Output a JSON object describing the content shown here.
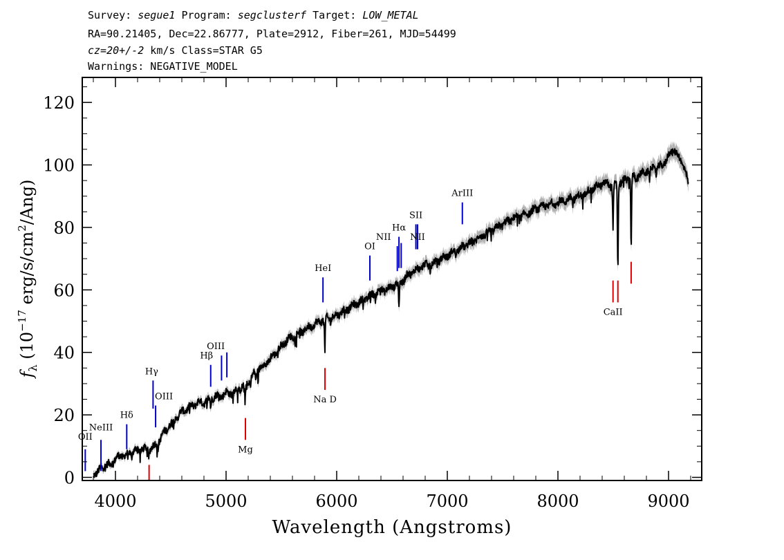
{
  "header": {
    "line1": {
      "survey_label": "Survey: ",
      "survey": "segue1",
      "program_label": " Program: ",
      "program": "segclusterf",
      "target_label": " Target: ",
      "target": "LOW_METAL"
    },
    "line2": "RA=90.21405, Dec=22.86777, Plate=2912, Fiber=261, MJD=54499",
    "line3": {
      "cz": "cz=20+/-2",
      "rest": " km/s Class=STAR G5"
    },
    "line4": "Warnings: NEGATIVE_MODEL"
  },
  "chart_data": {
    "type": "line",
    "xlabel": "Wavelength (Angstroms)",
    "ylabel_parts": {
      "f": "f",
      "sub": "λ",
      "pre": " (10",
      "exp1": "−17",
      "mid": " erg/s/cm",
      "exp2": "2",
      "post": "/Ang)"
    },
    "xlim": [
      3700,
      9300
    ],
    "ylim": [
      -1,
      128
    ],
    "xticks": [
      4000,
      5000,
      6000,
      7000,
      8000,
      9000
    ],
    "yticks": [
      0,
      20,
      40,
      60,
      80,
      100,
      120
    ],
    "xtick_labels": [
      "4000",
      "5000",
      "6000",
      "7000",
      "8000",
      "9000"
    ],
    "ytick_labels": [
      "0",
      "20",
      "40",
      "60",
      "80",
      "100",
      "120"
    ],
    "colors": {
      "spectrum": "#000000",
      "error": "#b0b0b0",
      "emission": "#0000cc",
      "absorption": "#dd0000"
    },
    "series": [
      {
        "x": [
          3800,
          3850,
          3900,
          3950,
          4000,
          4050,
          4100,
          4150,
          4200,
          4250,
          4300,
          4350,
          4400,
          4450,
          4500,
          4550,
          4600,
          4650,
          4700,
          4750,
          4800,
          4850,
          4900,
          4950,
          5000,
          5050,
          5100,
          5150,
          5200,
          5250,
          5300,
          5350,
          5400,
          5450,
          5500,
          5550,
          5600,
          5650,
          5700,
          5750,
          5800,
          5850,
          5900,
          5950,
          6000,
          6050,
          6100,
          6150,
          6200,
          6250,
          6300,
          6350,
          6400,
          6450,
          6500,
          6550,
          6600,
          6650,
          6700,
          6750,
          6800,
          6850,
          6900,
          6950,
          7000,
          7100,
          7200,
          7300,
          7400,
          7500,
          7600,
          7700,
          7800,
          7900,
          8000,
          8100,
          8200,
          8300,
          8400,
          8450,
          8500,
          8550,
          8600,
          8650,
          8700,
          8750,
          8800,
          8850,
          8900,
          8950,
          9000,
          9050,
          9100,
          9150,
          9180
        ],
        "y": [
          1,
          2,
          4,
          4,
          6,
          7,
          7,
          8,
          9,
          9,
          9,
          10,
          12,
          15,
          17,
          19,
          21,
          22,
          23,
          24,
          24,
          25,
          26,
          26,
          27,
          27,
          28,
          29,
          30,
          33,
          35,
          36,
          38,
          40,
          42,
          44,
          45,
          46,
          47,
          48,
          49,
          50,
          51,
          51,
          52,
          53,
          54,
          55,
          56,
          57,
          58,
          59,
          60,
          60,
          61,
          62,
          63,
          65,
          66,
          67,
          68,
          68,
          69,
          70,
          71,
          73,
          75,
          77,
          79,
          81,
          83,
          84,
          86,
          87,
          88,
          89,
          90,
          92,
          94,
          94,
          93,
          94,
          95,
          96,
          96,
          97,
          98,
          99,
          99,
          100,
          103,
          105,
          102,
          99,
          93
        ]
      }
    ],
    "absorption_dips": [
      {
        "x": 4300,
        "depth": 3
      },
      {
        "x": 4384,
        "depth": 2
      },
      {
        "x": 4861,
        "depth": 3
      },
      {
        "x": 5172,
        "depth": 6
      },
      {
        "x": 5270,
        "depth": 3
      },
      {
        "x": 5893,
        "depth": 11
      },
      {
        "x": 6563,
        "depth": 8
      },
      {
        "x": 8498,
        "depth": 13
      },
      {
        "x": 8542,
        "depth": 27
      },
      {
        "x": 8662,
        "depth": 22
      },
      {
        "x": 8830,
        "depth": 4
      }
    ],
    "line_markers": [
      {
        "label": "OII",
        "x": 3727,
        "y0": 2,
        "y1": 9,
        "kind": "emission",
        "label_dx": 0,
        "label_y": 12
      },
      {
        "label": "NeIII",
        "x": 3869,
        "y0": 2,
        "y1": 12,
        "kind": "emission",
        "label_dx": 0,
        "label_y": 15
      },
      {
        "label": "Hδ",
        "x": 4102,
        "y0": 9,
        "y1": 17,
        "kind": "emission",
        "label_dx": 0,
        "label_y": 19
      },
      {
        "label": "Hγ",
        "x": 4340,
        "y0": 22,
        "y1": 31,
        "kind": "emission",
        "label_dx": -2,
        "label_y": 33
      },
      {
        "label": "OIII",
        "x": 4363,
        "y0": 16,
        "y1": 23,
        "kind": "emission",
        "label_dx": 12,
        "label_y": 25
      },
      {
        "label": "Hβ",
        "x": 4861,
        "y0": 29,
        "y1": 36,
        "kind": "emission",
        "label_dx": -6,
        "label_y": 38
      },
      {
        "label": "OIII",
        "x": 4959,
        "y0": 31,
        "y1": 39,
        "kind": "emission",
        "label_dx": 0,
        "label_y": 0
      },
      {
        "label": "OIII",
        "x": 5007,
        "y0": 32,
        "y1": 40,
        "kind": "emission",
        "label_dx": -16,
        "label_y": 41
      },
      {
        "label": "HeI",
        "x": 5876,
        "y0": 56,
        "y1": 64,
        "kind": "emission",
        "label_dx": 0,
        "label_y": 66
      },
      {
        "label": "OI",
        "x": 6300,
        "y0": 63,
        "y1": 71,
        "kind": "emission",
        "label_dx": 0,
        "label_y": 73
      },
      {
        "label": "NII",
        "x": 6548,
        "y0": 66,
        "y1": 74,
        "kind": "emission",
        "label_dx": -20,
        "label_y": 76
      },
      {
        "label": "Hα",
        "x": 6563,
        "y0": 67,
        "y1": 77,
        "kind": "emission",
        "label_dx": 0,
        "label_y": 79
      },
      {
        "label": "NII",
        "x": 6583,
        "y0": 67,
        "y1": 75,
        "kind": "emission",
        "label_dx": 0,
        "label_y": 0
      },
      {
        "label": "SII",
        "x": 6716,
        "y0": 73,
        "y1": 81,
        "kind": "emission",
        "label_dx": 0,
        "label_y": 83
      },
      {
        "label": "NII",
        "x": 6731,
        "y0": 73,
        "y1": 81,
        "kind": "emission",
        "label_dx": 0,
        "label_y": 76
      },
      {
        "label": "ArIII",
        "x": 7136,
        "y0": 81,
        "y1": 88,
        "kind": "emission",
        "label_dx": 0,
        "label_y": 90
      },
      {
        "label": "",
        "x": 4304,
        "y0": -1,
        "y1": 4,
        "kind": "absorption",
        "label_dx": 0,
        "label_y": 0
      },
      {
        "label": "Mg",
        "x": 5175,
        "y0": 12,
        "y1": 19,
        "kind": "absorption",
        "label_dx": 0,
        "label_y": 8
      },
      {
        "label": "Na D",
        "x": 5894,
        "y0": 28,
        "y1": 35,
        "kind": "absorption",
        "label_dx": 0,
        "label_y": 24
      },
      {
        "label": "CaII",
        "x": 8498,
        "y0": 56,
        "y1": 63,
        "kind": "absorption",
        "label_dx": 0,
        "label_y": 52
      },
      {
        "label": "",
        "x": 8542,
        "y0": 56,
        "y1": 63,
        "kind": "absorption",
        "label_dx": 0,
        "label_y": 0
      },
      {
        "label": "",
        "x": 8662,
        "y0": 62,
        "y1": 69,
        "kind": "absorption",
        "label_dx": 0,
        "label_y": 0
      }
    ]
  }
}
